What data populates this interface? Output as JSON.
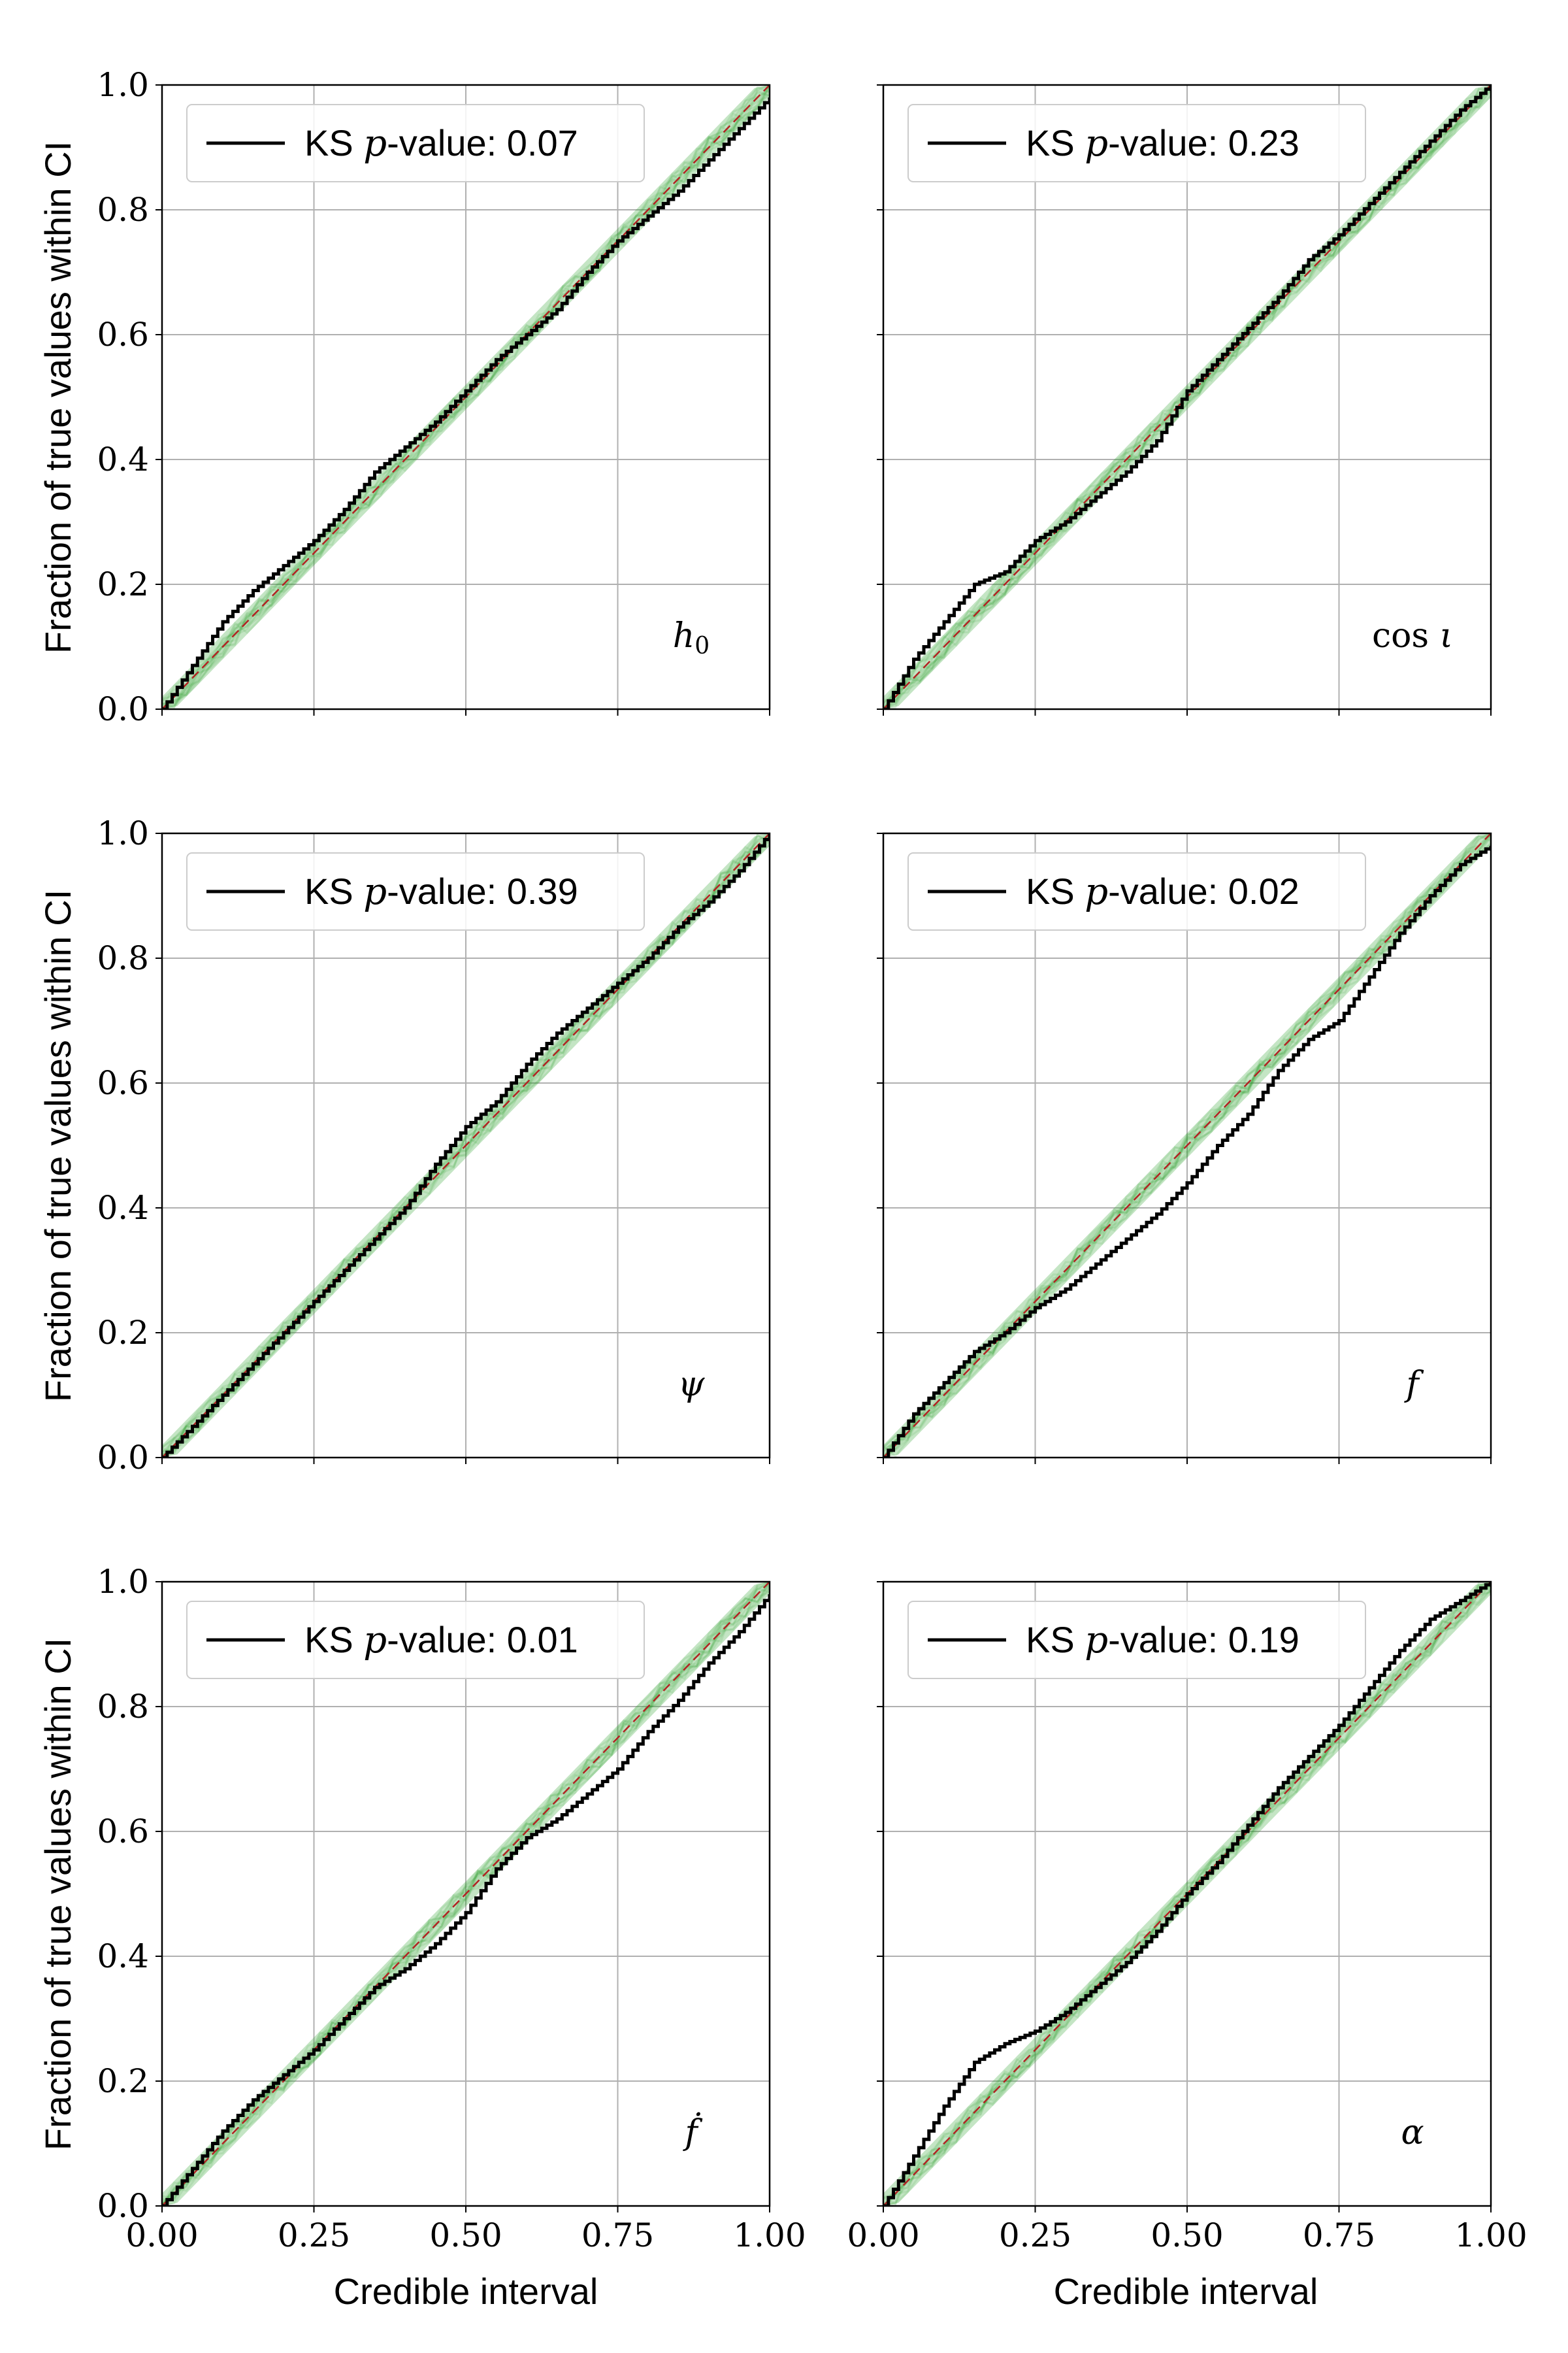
{
  "figure": {
    "xlabel": "Credible interval",
    "ylabel": "Fraction of true values within CI"
  },
  "colors": {
    "observed_line": "#000000",
    "expected_band": "#2ca02c",
    "diagonal_reference": "#b22222",
    "grid": "#b0b0b0",
    "axis": "#000000"
  },
  "chart_data": [
    {
      "type": "line",
      "panel": "h0",
      "param_label": "h0",
      "legend": {
        "line_label": "KS ",
        "italic": "p",
        "suffix": "-value: 0.07",
        "placement": "upper-left"
      },
      "xlim": [
        0,
        1
      ],
      "ylim": [
        0,
        1
      ],
      "grid": true,
      "x_ticks": [
        "0.00",
        "0.25",
        "0.50",
        "0.75",
        "1.00"
      ],
      "y_ticks": [
        "0.0",
        "0.2",
        "0.4",
        "0.6",
        "0.8",
        "1.0"
      ],
      "x_ticks_visible": false,
      "y_ticks_visible": true,
      "x": [
        0,
        0.05,
        0.1,
        0.15,
        0.2,
        0.25,
        0.3,
        0.35,
        0.4,
        0.45,
        0.5,
        0.55,
        0.6,
        0.65,
        0.7,
        0.75,
        0.8,
        0.85,
        0.9,
        0.95,
        1.0
      ],
      "y": [
        0,
        0.07,
        0.14,
        0.19,
        0.23,
        0.27,
        0.32,
        0.38,
        0.42,
        0.46,
        0.51,
        0.56,
        0.6,
        0.64,
        0.7,
        0.75,
        0.79,
        0.83,
        0.88,
        0.93,
        0.98
      ],
      "band_halfwidth": 0.02
    },
    {
      "type": "line",
      "panel": "cos_iota",
      "param_label": "cos ι",
      "legend": {
        "line_label": "KS ",
        "italic": "p",
        "suffix": "-value: 0.23",
        "placement": "upper-left"
      },
      "xlim": [
        0,
        1
      ],
      "ylim": [
        0,
        1
      ],
      "grid": true,
      "x_ticks": [
        "0.00",
        "0.25",
        "0.50",
        "0.75",
        "1.00"
      ],
      "y_ticks": [
        "0.0",
        "0.2",
        "0.4",
        "0.6",
        "0.8",
        "1.0"
      ],
      "x_ticks_visible": false,
      "y_ticks_visible": false,
      "x": [
        0,
        0.05,
        0.1,
        0.15,
        0.2,
        0.25,
        0.3,
        0.35,
        0.4,
        0.45,
        0.5,
        0.55,
        0.6,
        0.65,
        0.7,
        0.75,
        0.8,
        0.85,
        0.9,
        0.95,
        1.0
      ],
      "y": [
        0,
        0.08,
        0.14,
        0.2,
        0.22,
        0.27,
        0.3,
        0.34,
        0.38,
        0.43,
        0.51,
        0.56,
        0.61,
        0.66,
        0.72,
        0.76,
        0.81,
        0.86,
        0.91,
        0.96,
        1.0
      ],
      "band_halfwidth": 0.02
    },
    {
      "type": "line",
      "panel": "psi",
      "param_label": "ψ",
      "legend": {
        "line_label": "KS ",
        "italic": "p",
        "suffix": "-value: 0.39",
        "placement": "upper-left"
      },
      "xlim": [
        0,
        1
      ],
      "ylim": [
        0,
        1
      ],
      "grid": true,
      "x_ticks": [
        "0.00",
        "0.25",
        "0.50",
        "0.75",
        "1.00"
      ],
      "y_ticks": [
        "0.0",
        "0.2",
        "0.4",
        "0.6",
        "0.8",
        "1.0"
      ],
      "x_ticks_visible": false,
      "y_ticks_visible": true,
      "x": [
        0,
        0.05,
        0.1,
        0.15,
        0.2,
        0.25,
        0.3,
        0.35,
        0.4,
        0.45,
        0.5,
        0.55,
        0.6,
        0.65,
        0.7,
        0.75,
        0.8,
        0.85,
        0.9,
        0.95,
        1.0
      ],
      "y": [
        0,
        0.05,
        0.1,
        0.15,
        0.2,
        0.25,
        0.3,
        0.35,
        0.4,
        0.47,
        0.53,
        0.57,
        0.63,
        0.68,
        0.72,
        0.76,
        0.8,
        0.85,
        0.89,
        0.94,
        1.0
      ],
      "band_halfwidth": 0.02
    },
    {
      "type": "line",
      "panel": "f",
      "param_label": "f",
      "legend": {
        "line_label": "KS ",
        "italic": "p",
        "suffix": "-value: 0.02",
        "placement": "upper-left"
      },
      "xlim": [
        0,
        1
      ],
      "ylim": [
        0,
        1
      ],
      "grid": true,
      "x_ticks": [
        "0.00",
        "0.25",
        "0.50",
        "0.75",
        "1.00"
      ],
      "y_ticks": [
        "0.0",
        "0.2",
        "0.4",
        "0.6",
        "0.8",
        "1.0"
      ],
      "x_ticks_visible": false,
      "y_ticks_visible": false,
      "x": [
        0,
        0.05,
        0.1,
        0.15,
        0.2,
        0.25,
        0.3,
        0.35,
        0.4,
        0.45,
        0.5,
        0.55,
        0.6,
        0.65,
        0.7,
        0.75,
        0.8,
        0.85,
        0.9,
        0.95,
        1.0
      ],
      "y": [
        0,
        0.07,
        0.12,
        0.17,
        0.2,
        0.24,
        0.27,
        0.31,
        0.35,
        0.39,
        0.44,
        0.5,
        0.55,
        0.62,
        0.67,
        0.7,
        0.77,
        0.84,
        0.9,
        0.95,
        0.98
      ],
      "band_halfwidth": 0.02
    },
    {
      "type": "line",
      "panel": "fdot",
      "param_label": "ḟ",
      "legend": {
        "line_label": "KS ",
        "italic": "p",
        "suffix": "-value: 0.01",
        "placement": "upper-left"
      },
      "xlim": [
        0,
        1
      ],
      "ylim": [
        0,
        1
      ],
      "grid": true,
      "x_ticks": [
        "0.00",
        "0.25",
        "0.50",
        "0.75",
        "1.00"
      ],
      "y_ticks": [
        "0.0",
        "0.2",
        "0.4",
        "0.6",
        "0.8",
        "1.0"
      ],
      "x_ticks_visible": true,
      "y_ticks_visible": true,
      "x": [
        0,
        0.05,
        0.1,
        0.15,
        0.2,
        0.25,
        0.3,
        0.35,
        0.4,
        0.45,
        0.5,
        0.55,
        0.6,
        0.65,
        0.7,
        0.75,
        0.8,
        0.85,
        0.9,
        0.95,
        1.0
      ],
      "y": [
        0,
        0.06,
        0.12,
        0.17,
        0.21,
        0.25,
        0.3,
        0.35,
        0.38,
        0.42,
        0.47,
        0.54,
        0.59,
        0.62,
        0.66,
        0.7,
        0.76,
        0.81,
        0.87,
        0.92,
        0.98
      ],
      "band_halfwidth": 0.02
    },
    {
      "type": "line",
      "panel": "alpha",
      "param_label": "α",
      "legend": {
        "line_label": "KS ",
        "italic": "p",
        "suffix": "-value: 0.19",
        "placement": "upper-left"
      },
      "xlim": [
        0,
        1
      ],
      "ylim": [
        0,
        1
      ],
      "grid": true,
      "x_ticks": [
        "0.00",
        "0.25",
        "0.50",
        "0.75",
        "1.00"
      ],
      "y_ticks": [
        "0.0",
        "0.2",
        "0.4",
        "0.6",
        "0.8",
        "1.0"
      ],
      "x_ticks_visible": true,
      "y_ticks_visible": false,
      "x": [
        0,
        0.05,
        0.1,
        0.15,
        0.2,
        0.25,
        0.3,
        0.35,
        0.4,
        0.45,
        0.5,
        0.55,
        0.6,
        0.65,
        0.7,
        0.75,
        0.8,
        0.85,
        0.9,
        0.95,
        1.0
      ],
      "y": [
        0,
        0.08,
        0.16,
        0.23,
        0.26,
        0.28,
        0.31,
        0.35,
        0.39,
        0.44,
        0.5,
        0.55,
        0.61,
        0.67,
        0.72,
        0.77,
        0.83,
        0.89,
        0.94,
        0.97,
        1.0
      ],
      "band_halfwidth": 0.02
    }
  ]
}
